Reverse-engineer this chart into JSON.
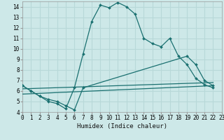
{
  "background_color": "#cde8e8",
  "grid_color": "#b8d8d8",
  "line_color": "#1a7070",
  "xlabel": "Humidex (Indice chaleur)",
  "xlim": [
    0,
    23
  ],
  "ylim": [
    4,
    14.5
  ],
  "xticks": [
    0,
    1,
    2,
    3,
    4,
    5,
    6,
    7,
    8,
    9,
    10,
    11,
    12,
    13,
    14,
    15,
    16,
    17,
    18,
    19,
    20,
    21,
    22,
    23
  ],
  "yticks": [
    4,
    5,
    6,
    7,
    8,
    9,
    10,
    11,
    12,
    13,
    14
  ],
  "curve1_x": [
    0,
    1,
    2,
    3,
    4,
    5,
    6,
    7,
    8,
    9,
    10,
    11,
    12,
    13,
    14,
    15,
    16,
    17,
    18,
    19,
    20,
    21,
    22
  ],
  "curve1_y": [
    6.5,
    6.0,
    5.5,
    5.0,
    4.8,
    4.3,
    6.3,
    9.5,
    12.6,
    14.15,
    13.9,
    14.4,
    14.0,
    13.3,
    11.0,
    10.5,
    10.2,
    11.0,
    9.3,
    8.5,
    7.2,
    6.6,
    6.3
  ],
  "curve2_x": [
    0,
    1,
    2,
    3,
    4,
    5,
    6,
    7,
    19,
    20,
    21,
    22
  ],
  "curve2_y": [
    6.5,
    6.0,
    5.5,
    5.2,
    5.0,
    4.6,
    4.2,
    6.3,
    9.3,
    8.5,
    7.0,
    6.5
  ],
  "line3_x": [
    0,
    22
  ],
  "line3_y": [
    6.2,
    6.8
  ],
  "line4_x": [
    0,
    22
  ],
  "line4_y": [
    5.7,
    6.5
  ]
}
